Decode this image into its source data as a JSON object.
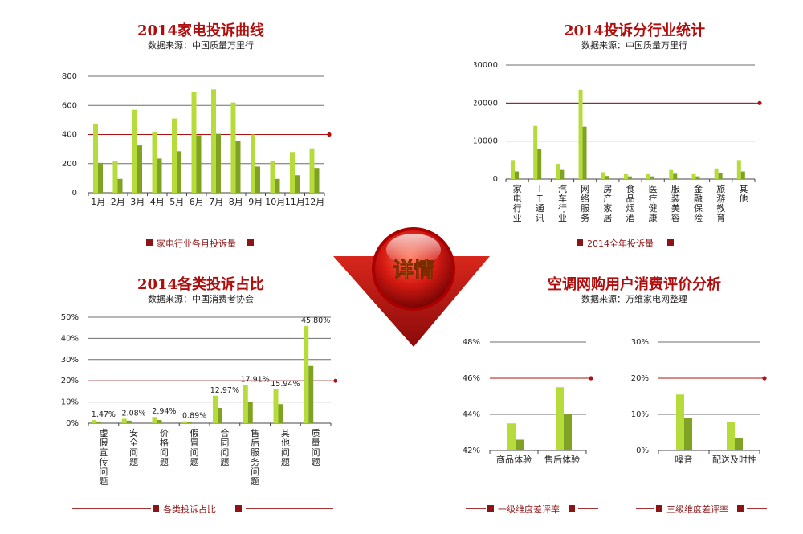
{
  "colors": {
    "light": "#b5dc3b",
    "dark": "#7fa224",
    "grid": "#6d6d6d",
    "ref": "#b01010",
    "title": "#b00d0d"
  },
  "center_button": {
    "label": "详情"
  },
  "panels": {
    "monthly": {
      "title": "2014家电投诉曲线",
      "source": "数据来源：中国质量万里行",
      "legend": "家电行业各月投诉量"
    },
    "industry": {
      "title": "2014投诉分行业统计",
      "source": "数据来源：中国质量万里行",
      "legend": "2014全年投诉量"
    },
    "category": {
      "title": "2014各类投诉占比",
      "source": "数据来源：中国消费者协会",
      "legend": "各类投诉占比"
    },
    "ac": {
      "title": "空调网购用户消费评价分析",
      "source": "数据来源：万维家电网整理",
      "legend1": "一级维度差评率",
      "legend2": "三级维度差评率"
    }
  },
  "chart_data": [
    {
      "id": "monthly",
      "type": "bar",
      "title": "2014家电投诉曲线",
      "ylim": [
        0,
        800
      ],
      "yticks": [
        "0",
        "200",
        "400",
        "600",
        "800"
      ],
      "ref_line": 400,
      "categories": [
        "1月",
        "2月",
        "3月",
        "4月",
        "5月",
        "6月",
        "7月",
        "8月",
        "9月",
        "10月",
        "11月",
        "12月"
      ],
      "series": [
        {
          "values": [
            470,
            220,
            570,
            420,
            510,
            690,
            710,
            620,
            400,
            220,
            280,
            305
          ]
        },
        {
          "values": [
            205,
            95,
            325,
            235,
            285,
            395,
            405,
            355,
            180,
            95,
            120,
            170
          ]
        }
      ]
    },
    {
      "id": "industry",
      "type": "bar",
      "title": "2014投诉分行业统计",
      "ylim": [
        0,
        30000
      ],
      "yticks": [
        "0",
        "10000",
        "20000",
        "30000"
      ],
      "ref_line": 20000,
      "categories": [
        "家电行业",
        "IT通讯",
        "汽车行业",
        "网络服务",
        "房产家居",
        "食品烟酒",
        "医疗健康",
        "服装美容",
        "金融保险",
        "旅游教育",
        "其他"
      ],
      "series": [
        {
          "values": [
            5000,
            14000,
            4000,
            23500,
            1800,
            1300,
            1300,
            2400,
            1300,
            2800,
            5000
          ]
        },
        {
          "values": [
            2000,
            8000,
            2400,
            13800,
            800,
            700,
            700,
            1400,
            700,
            1600,
            2000
          ]
        }
      ]
    },
    {
      "id": "category",
      "type": "bar",
      "title": "2014各类投诉占比",
      "ylim": [
        0,
        50
      ],
      "yticks": [
        "0%",
        "10%",
        "20%",
        "30%",
        "40%",
        "50%"
      ],
      "ref_line": 20,
      "categories": [
        "虚假宣传问题",
        "安全问题",
        "价格问题",
        "假冒问题",
        "合同问题",
        "售后服务问题",
        "其他问题",
        "质量问题"
      ],
      "data_labels": [
        "1.47%",
        "2.08%",
        "2.94%",
        "0.89%",
        "12.97%",
        "17.91%",
        "15.94%",
        "45.80%"
      ],
      "series": [
        {
          "values": [
            1.47,
            2.08,
            2.94,
            0.89,
            12.97,
            17.91,
            15.94,
            45.8
          ]
        },
        {
          "values": [
            0.8,
            1.2,
            1.5,
            0.4,
            7.2,
            10.0,
            9.0,
            27.0
          ]
        }
      ]
    },
    {
      "id": "ac1",
      "type": "bar",
      "ylim": [
        42,
        48
      ],
      "yticks": [
        "42%",
        "44%",
        "46%",
        "48%"
      ],
      "ref_line": 46,
      "categories": [
        "商品体验",
        "售后体验"
      ],
      "series": [
        {
          "values": [
            43.5,
            45.5
          ]
        },
        {
          "values": [
            42.6,
            44.0
          ]
        }
      ]
    },
    {
      "id": "ac2",
      "type": "bar",
      "ylim": [
        0,
        30
      ],
      "yticks": [
        "0%",
        "10%",
        "20%",
        "30%"
      ],
      "ref_line": 20,
      "categories": [
        "噪音",
        "配送及时性"
      ],
      "series": [
        {
          "values": [
            15.5,
            8.0
          ]
        },
        {
          "values": [
            9.0,
            3.5
          ]
        }
      ]
    }
  ]
}
